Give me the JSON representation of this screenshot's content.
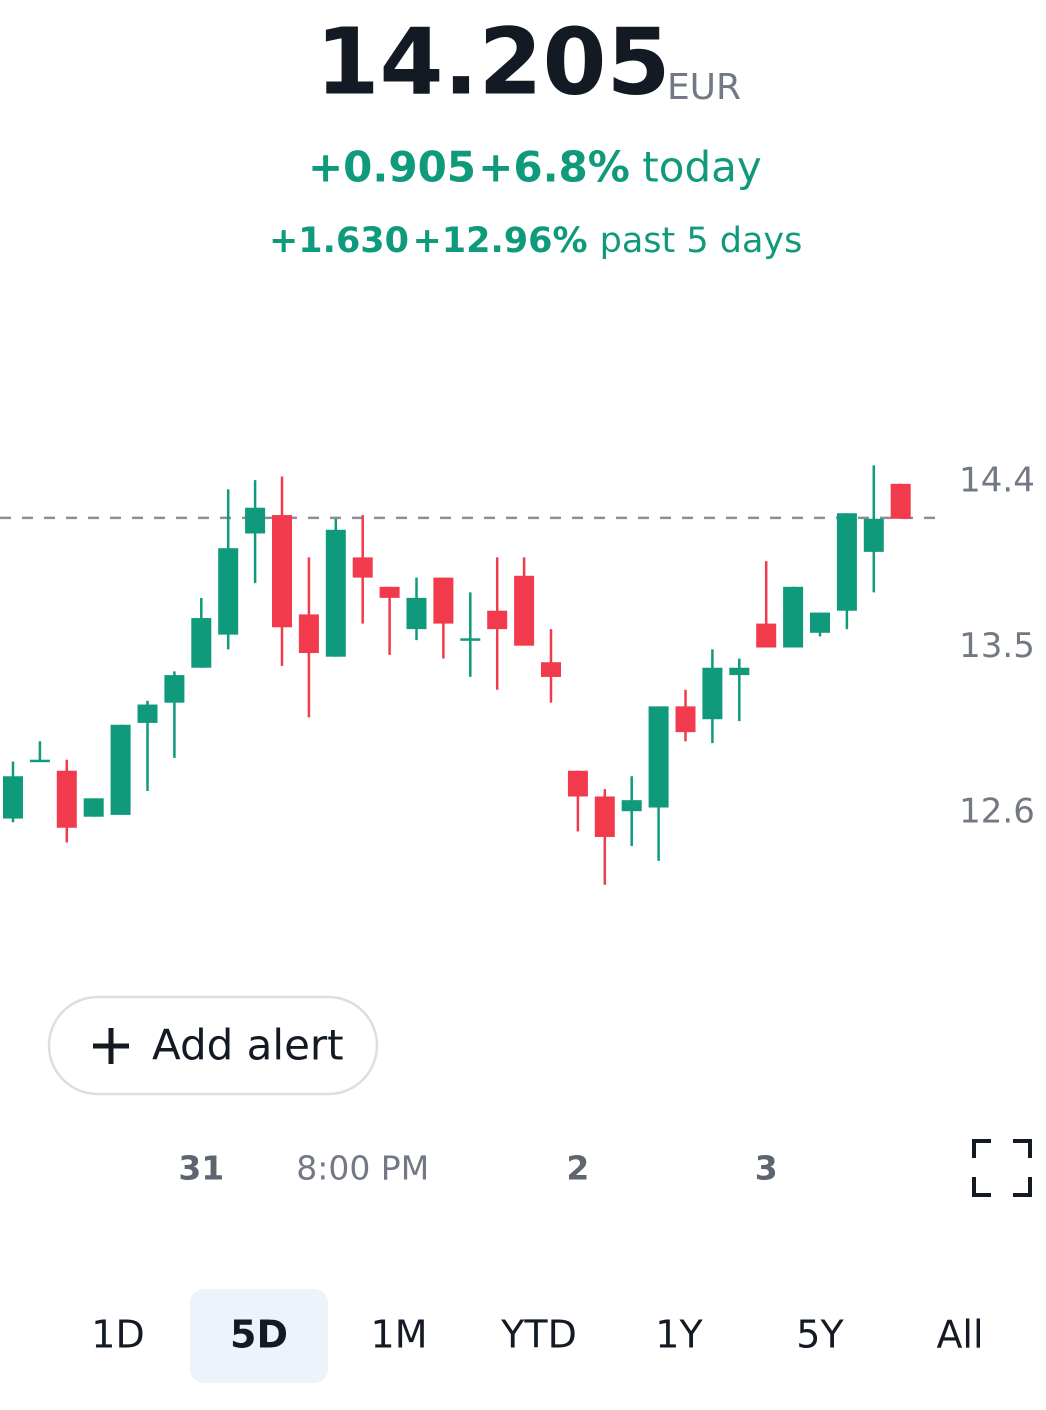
{
  "header": {
    "price": "14.205",
    "currency": "EUR",
    "today": {
      "change": "+0.905",
      "percent": "+6.8%",
      "label": "today"
    },
    "period": {
      "change": "+1.630",
      "percent": "+12.96%",
      "label": "past 5 days"
    }
  },
  "chart_data": {
    "type": "candlestick",
    "up_color": "#0f9a7b",
    "down_color": "#f13a4b",
    "categories": [
      null,
      null,
      null,
      null,
      null,
      null,
      null,
      "31",
      null,
      null,
      null,
      null,
      null,
      "8:00 PM",
      null,
      null,
      null,
      null,
      null,
      null,
      null,
      "2",
      null,
      null,
      null,
      null,
      null,
      null,
      "3",
      null,
      null,
      null,
      null,
      null
    ],
    "open": [
      12.57,
      12.88,
      12.83,
      12.58,
      12.59,
      13.09,
      13.2,
      13.39,
      13.57,
      14.12,
      14.22,
      13.68,
      13.45,
      13.99,
      13.83,
      13.6,
      13.88,
      13.54,
      13.7,
      13.89,
      13.42,
      12.83,
      12.69,
      12.61,
      12.63,
      13.18,
      13.11,
      13.35,
      13.63,
      13.5,
      13.58,
      13.7,
      14.02,
      14.39
    ],
    "high": [
      12.88,
      12.99,
      12.89,
      12.68,
      13.08,
      13.21,
      13.37,
      13.77,
      14.36,
      14.41,
      14.43,
      13.99,
      14.2,
      14.22,
      13.83,
      13.88,
      13.88,
      13.8,
      13.99,
      13.99,
      13.6,
      12.83,
      12.73,
      12.8,
      13.18,
      13.27,
      13.49,
      13.44,
      13.97,
      13.83,
      13.69,
      14.23,
      14.49,
      14.39
    ],
    "low": [
      12.55,
      12.88,
      12.44,
      12.58,
      12.59,
      12.72,
      12.9,
      13.39,
      13.49,
      13.85,
      13.4,
      13.12,
      13.45,
      13.63,
      13.46,
      13.54,
      13.44,
      13.34,
      13.27,
      13.51,
      13.2,
      12.5,
      12.21,
      12.42,
      12.34,
      12.99,
      12.98,
      13.1,
      13.5,
      13.5,
      13.56,
      13.6,
      13.8,
      14.2
    ],
    "close": [
      12.8,
      12.89,
      12.52,
      12.68,
      13.08,
      13.19,
      13.35,
      13.66,
      14.04,
      14.26,
      13.61,
      13.47,
      14.14,
      13.88,
      13.77,
      13.77,
      13.63,
      13.55,
      13.6,
      13.51,
      13.34,
      12.69,
      12.47,
      12.67,
      13.18,
      13.04,
      13.39,
      13.39,
      13.5,
      13.83,
      13.69,
      14.23,
      14.2,
      14.2
    ],
    "reference_line": 14.205,
    "ylim": [
      12.0,
      14.75
    ],
    "yticks": [
      12.6,
      13.5,
      14.4
    ]
  },
  "alert_button": "Add alert",
  "tabs": [
    "1D",
    "5D",
    "1M",
    "YTD",
    "1Y",
    "5Y",
    "All"
  ],
  "selected_tab": 1
}
